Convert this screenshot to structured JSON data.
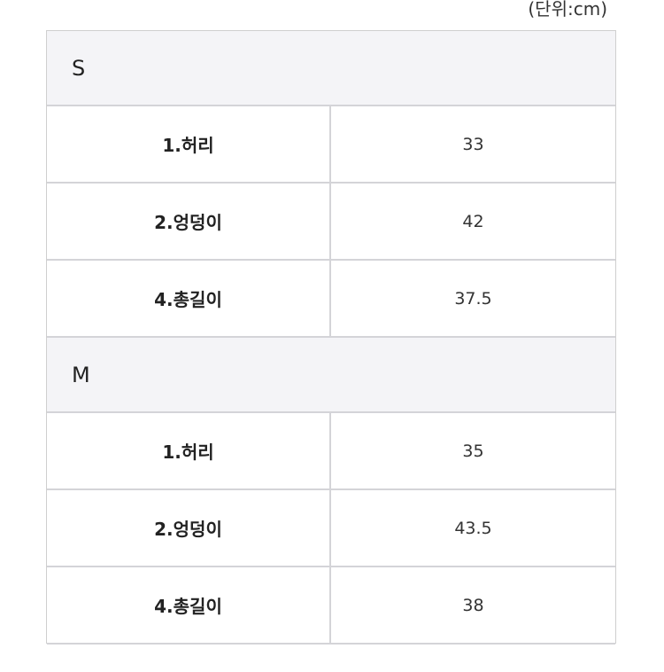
{
  "unit": "(단위:cm)",
  "table": {
    "sections": [
      {
        "size": "S",
        "rows": [
          [
            "1.허리",
            "33"
          ],
          [
            "2.엉덩이",
            "42"
          ],
          [
            "4.총길이",
            "37.5"
          ]
        ]
      },
      {
        "size": "M",
        "rows": [
          [
            "1.허리",
            "35"
          ],
          [
            "2.엉덩이",
            "43.5"
          ],
          [
            "4.총길이",
            "38"
          ]
        ]
      }
    ]
  }
}
